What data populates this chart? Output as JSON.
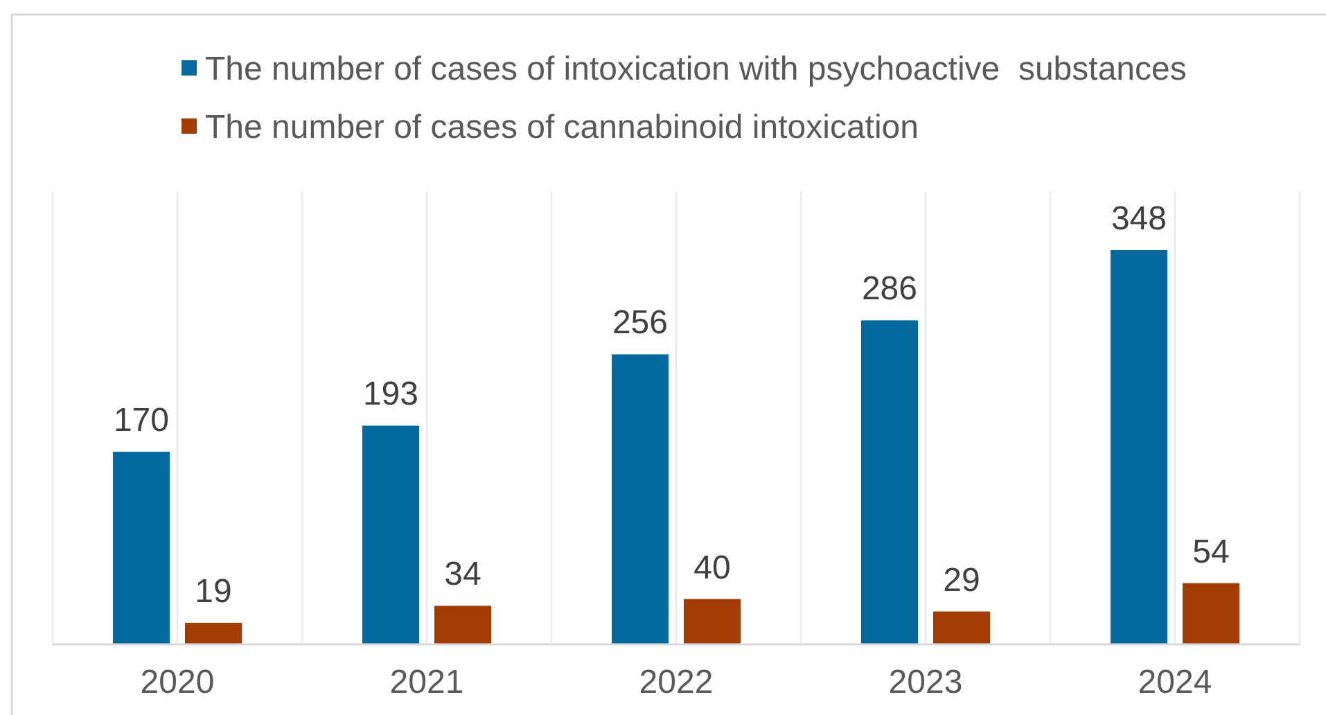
{
  "chart_data": {
    "type": "bar",
    "categories": [
      "2020",
      "2021",
      "2022",
      "2023",
      "2024"
    ],
    "series": [
      {
        "name": "The number of cases of intoxication with psychoactive  substances",
        "color": "#03699f",
        "values": [
          170,
          193,
          256,
          286,
          348
        ]
      },
      {
        "name": "The number of cases of cannabinoid intoxication",
        "color": "#a33c02",
        "values": [
          19,
          34,
          40,
          29,
          54
        ]
      }
    ],
    "ylim": [
      0,
      400
    ],
    "tick_labels": "x",
    "grid": "x",
    "legend": "top",
    "data_labels": true
  }
}
